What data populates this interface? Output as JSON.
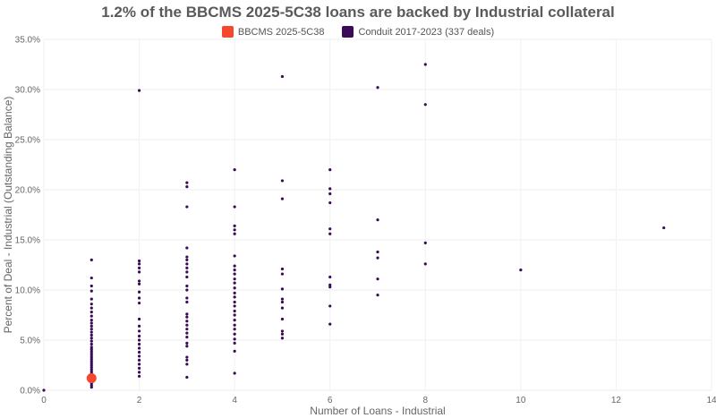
{
  "chart_data": {
    "type": "scatter",
    "title": "1.2% of the BBCMS 2025-5C38 loans are backed by Industrial collateral",
    "xlabel": "Number of Loans - Industrial",
    "ylabel": "Percent of Deal - Industrial (Outstanding Balance)",
    "xlim": [
      0,
      14
    ],
    "ylim": [
      0,
      35
    ],
    "x_ticks": [
      0,
      2,
      4,
      6,
      8,
      10,
      12,
      14
    ],
    "x_tick_labels": [
      "0",
      "2",
      "4",
      "6",
      "8",
      "10",
      "12",
      "14"
    ],
    "y_ticks": [
      0,
      5,
      10,
      15,
      20,
      25,
      30,
      35
    ],
    "y_tick_labels": [
      "0.0%",
      "5.0%",
      "10.0%",
      "15.0%",
      "20.0%",
      "25.0%",
      "30.0%",
      "35.0%"
    ],
    "grid": true,
    "legend_position": "top-center",
    "series": [
      {
        "name": "BBCMS 2025-5C38",
        "color": "#f4472e",
        "marker": "large-circle",
        "points": [
          [
            1,
            1.2
          ]
        ]
      },
      {
        "name": "Conduit 2017-2023 (337 deals)",
        "color": "#3b0b57",
        "marker": "small-dot",
        "points": [
          [
            0,
            0.0
          ],
          [
            1,
            0.3
          ],
          [
            1,
            0.5
          ],
          [
            1,
            0.7
          ],
          [
            1,
            0.9
          ],
          [
            1,
            1.1
          ],
          [
            1,
            1.3
          ],
          [
            1,
            1.5
          ],
          [
            1,
            1.7
          ],
          [
            1,
            1.9
          ],
          [
            1,
            2.1
          ],
          [
            1,
            2.3
          ],
          [
            1,
            2.5
          ],
          [
            1,
            2.7
          ],
          [
            1,
            2.9
          ],
          [
            1,
            3.1
          ],
          [
            1,
            3.3
          ],
          [
            1,
            3.5
          ],
          [
            1,
            3.7
          ],
          [
            1,
            3.9
          ],
          [
            1,
            4.1
          ],
          [
            1,
            4.3
          ],
          [
            1,
            4.6
          ],
          [
            1,
            4.9
          ],
          [
            1,
            5.2
          ],
          [
            1,
            5.5
          ],
          [
            1,
            5.8
          ],
          [
            1,
            6.1
          ],
          [
            1,
            6.4
          ],
          [
            1,
            6.7
          ],
          [
            1,
            7.0
          ],
          [
            1,
            7.4
          ],
          [
            1,
            7.8
          ],
          [
            1,
            8.2
          ],
          [
            1,
            8.6
          ],
          [
            1,
            9.1
          ],
          [
            1,
            9.9
          ],
          [
            1,
            10.4
          ],
          [
            1,
            11.2
          ],
          [
            1,
            13.0
          ],
          [
            2,
            1.4
          ],
          [
            2,
            1.8
          ],
          [
            2,
            2.2
          ],
          [
            2,
            2.6
          ],
          [
            2,
            3.0
          ],
          [
            2,
            3.4
          ],
          [
            2,
            3.8
          ],
          [
            2,
            4.2
          ],
          [
            2,
            4.6
          ],
          [
            2,
            5.0
          ],
          [
            2,
            5.4
          ],
          [
            2,
            5.9
          ],
          [
            2,
            6.4
          ],
          [
            2,
            7.1
          ],
          [
            2,
            8.7
          ],
          [
            2,
            9.2
          ],
          [
            2,
            9.8
          ],
          [
            2,
            10.6
          ],
          [
            2,
            10.9
          ],
          [
            2,
            11.8
          ],
          [
            2,
            12.2
          ],
          [
            2,
            12.6
          ],
          [
            2,
            12.9
          ],
          [
            2,
            29.9
          ],
          [
            3,
            1.3
          ],
          [
            3,
            2.6
          ],
          [
            3,
            3.0
          ],
          [
            3,
            3.3
          ],
          [
            3,
            4.4
          ],
          [
            3,
            4.7
          ],
          [
            3,
            5.3
          ],
          [
            3,
            5.7
          ],
          [
            3,
            6.1
          ],
          [
            3,
            6.5
          ],
          [
            3,
            6.9
          ],
          [
            3,
            7.3
          ],
          [
            3,
            7.6
          ],
          [
            3,
            8.8
          ],
          [
            3,
            9.2
          ],
          [
            3,
            10.0
          ],
          [
            3,
            10.4
          ],
          [
            3,
            11.3
          ],
          [
            3,
            11.8
          ],
          [
            3,
            12.2
          ],
          [
            3,
            12.6
          ],
          [
            3,
            13.0
          ],
          [
            3,
            13.3
          ],
          [
            3,
            14.2
          ],
          [
            3,
            18.3
          ],
          [
            3,
            20.3
          ],
          [
            3,
            20.7
          ],
          [
            4,
            1.7
          ],
          [
            4,
            3.9
          ],
          [
            4,
            4.7
          ],
          [
            4,
            5.1
          ],
          [
            4,
            5.6
          ],
          [
            4,
            6.1
          ],
          [
            4,
            6.5
          ],
          [
            4,
            7.0
          ],
          [
            4,
            7.5
          ],
          [
            4,
            7.9
          ],
          [
            4,
            8.4
          ],
          [
            4,
            8.8
          ],
          [
            4,
            9.3
          ],
          [
            4,
            9.7
          ],
          [
            4,
            10.2
          ],
          [
            4,
            10.7
          ],
          [
            4,
            11.1
          ],
          [
            4,
            11.6
          ],
          [
            4,
            12.0
          ],
          [
            4,
            12.4
          ],
          [
            4,
            13.4
          ],
          [
            4,
            15.6
          ],
          [
            4,
            16.0
          ],
          [
            4,
            16.4
          ],
          [
            4,
            18.3
          ],
          [
            4,
            22.0
          ],
          [
            5,
            5.2
          ],
          [
            5,
            5.6
          ],
          [
            5,
            5.9
          ],
          [
            5,
            7.1
          ],
          [
            5,
            8.2
          ],
          [
            5,
            8.8
          ],
          [
            5,
            9.1
          ],
          [
            5,
            10.1
          ],
          [
            5,
            11.6
          ],
          [
            5,
            12.1
          ],
          [
            5,
            19.1
          ],
          [
            5,
            20.9
          ],
          [
            5,
            31.3
          ],
          [
            6,
            6.6
          ],
          [
            6,
            8.4
          ],
          [
            6,
            10.3
          ],
          [
            6,
            10.5
          ],
          [
            6,
            11.3
          ],
          [
            6,
            15.6
          ],
          [
            6,
            16.1
          ],
          [
            6,
            18.7
          ],
          [
            6,
            19.6
          ],
          [
            6,
            20.1
          ],
          [
            6,
            22.0
          ],
          [
            7,
            9.5
          ],
          [
            7,
            11.1
          ],
          [
            7,
            13.2
          ],
          [
            7,
            13.8
          ],
          [
            7,
            17.0
          ],
          [
            7,
            30.2
          ],
          [
            8,
            12.6
          ],
          [
            8,
            14.7
          ],
          [
            8,
            28.5
          ],
          [
            8,
            32.5
          ],
          [
            10,
            12.0
          ],
          [
            13,
            16.2
          ]
        ]
      }
    ]
  }
}
